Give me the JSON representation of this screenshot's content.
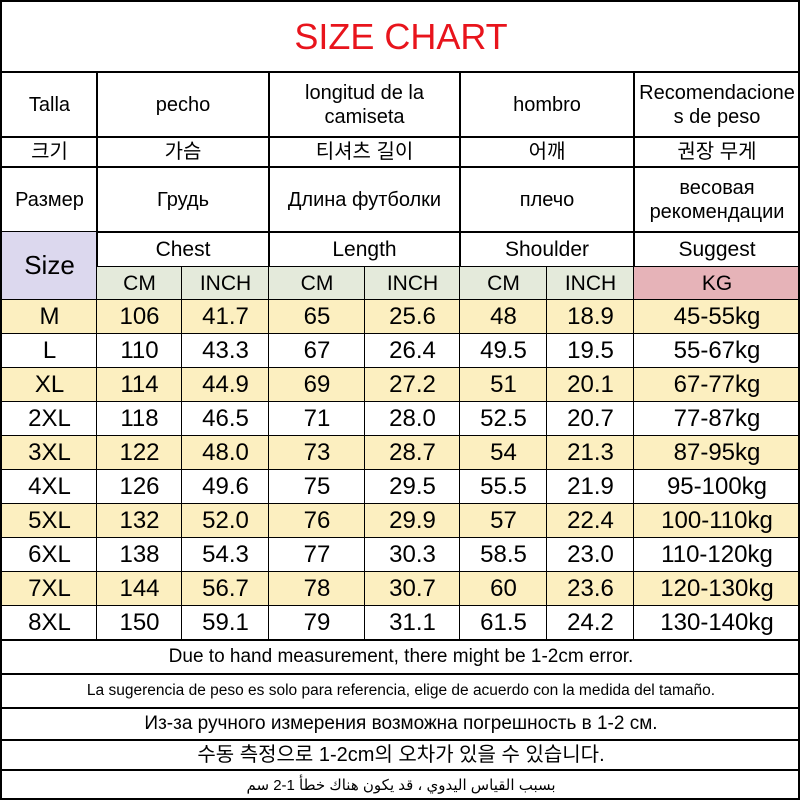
{
  "title": "SIZE CHART",
  "header_rows": [
    [
      "Talla",
      "pecho",
      "longitud de la camiseta",
      "hombro",
      "Recomendaciones de peso"
    ],
    [
      "크기",
      "가슴",
      "티셔츠 길이",
      "어깨",
      "권장 무게"
    ],
    [
      "Размер",
      "Грудь",
      "Длина футболки",
      "плечо",
      "весовая рекомендации"
    ]
  ],
  "size_label": "Size",
  "groups": [
    "Chest",
    "Length",
    "Shoulder",
    "Suggest"
  ],
  "units": [
    "CM",
    "INCH",
    "CM",
    "INCH",
    "CM",
    "INCH",
    "KG"
  ],
  "rows": [
    [
      "M",
      "106",
      "41.7",
      "65",
      "25.6",
      "48",
      "18.9",
      "45-55kg"
    ],
    [
      "L",
      "110",
      "43.3",
      "67",
      "26.4",
      "49.5",
      "19.5",
      "55-67kg"
    ],
    [
      "XL",
      "114",
      "44.9",
      "69",
      "27.2",
      "51",
      "20.1",
      "67-77kg"
    ],
    [
      "2XL",
      "118",
      "46.5",
      "71",
      "28.0",
      "52.5",
      "20.7",
      "77-87kg"
    ],
    [
      "3XL",
      "122",
      "48.0",
      "73",
      "28.7",
      "54",
      "21.3",
      "87-95kg"
    ],
    [
      "4XL",
      "126",
      "49.6",
      "75",
      "29.5",
      "55.5",
      "21.9",
      "95-100kg"
    ],
    [
      "5XL",
      "132",
      "52.0",
      "76",
      "29.9",
      "57",
      "22.4",
      "100-110kg"
    ],
    [
      "6XL",
      "138",
      "54.3",
      "77",
      "30.3",
      "58.5",
      "23.0",
      "110-120kg"
    ],
    [
      "7XL",
      "144",
      "56.7",
      "78",
      "30.7",
      "60",
      "23.6",
      "120-130kg"
    ],
    [
      "8XL",
      "150",
      "59.1",
      "79",
      "31.1",
      "61.5",
      "24.2",
      "130-140kg"
    ]
  ],
  "notes": [
    "Due to hand measurement, there might be 1-2cm error.",
    "La sugerencia de peso es solo para referencia, elige de acuerdo con la medida del tamaño.",
    "Из-за ручного измерения возможна погрешность в 1-2 см.",
    "수동 측정으로 1-2cm의 오차가 있을 수 있습니다.",
    "بسبب القياس اليدوي ، قد يكون هناك خطأ 1-2 سم"
  ]
}
